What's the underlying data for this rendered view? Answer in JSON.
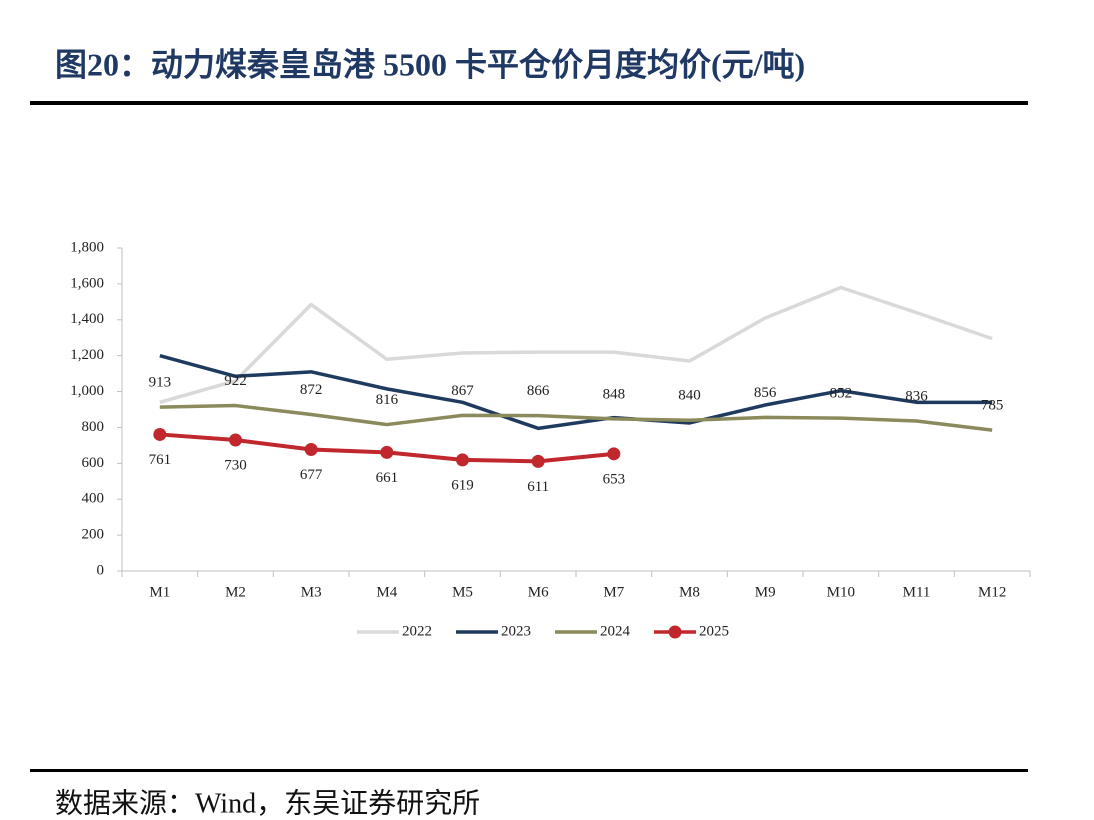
{
  "chart_data": {
    "type": "line",
    "title": "图20：动力煤秦皇岛港 5500 卡平仓价月度均价(元/吨)",
    "source": "数据来源：Wind，东吴证券研究所",
    "categories": [
      "M1",
      "M2",
      "M3",
      "M4",
      "M5",
      "M6",
      "M7",
      "M8",
      "M9",
      "M10",
      "M11",
      "M12"
    ],
    "ylim": [
      0,
      1800
    ],
    "yticks": [
      0,
      200,
      400,
      600,
      800,
      {
        "value": 1000,
        "label": "1,000"
      },
      {
        "value": 1200,
        "label": "1,200"
      },
      {
        "value": 1400,
        "label": "1,400"
      },
      {
        "value": 1600,
        "label": "1,600"
      },
      {
        "value": 1800,
        "label": "1,800"
      }
    ],
    "legend": "bottom",
    "series": [
      {
        "name": "2022",
        "color": "#d9d9d9",
        "values": [
          940,
          1060,
          1485,
          1180,
          1215,
          1220,
          1220,
          1170,
          1410,
          1580,
          1440,
          1295
        ]
      },
      {
        "name": "2023",
        "color": "#1f3a5f",
        "values": [
          1200,
          1085,
          1110,
          1015,
          940,
          795,
          855,
          825,
          925,
          1005,
          940,
          940
        ]
      },
      {
        "name": "2024",
        "color": "#8b8a5c",
        "show_labels": true,
        "values": [
          913,
          922,
          872,
          816,
          867,
          866,
          848,
          840,
          856,
          852,
          836,
          785
        ]
      },
      {
        "name": "2025",
        "color": "#c0282d",
        "markers": true,
        "show_labels": true,
        "values": [
          761,
          730,
          677,
          661,
          619,
          611,
          653,
          null,
          null,
          null,
          null,
          null
        ]
      }
    ]
  }
}
